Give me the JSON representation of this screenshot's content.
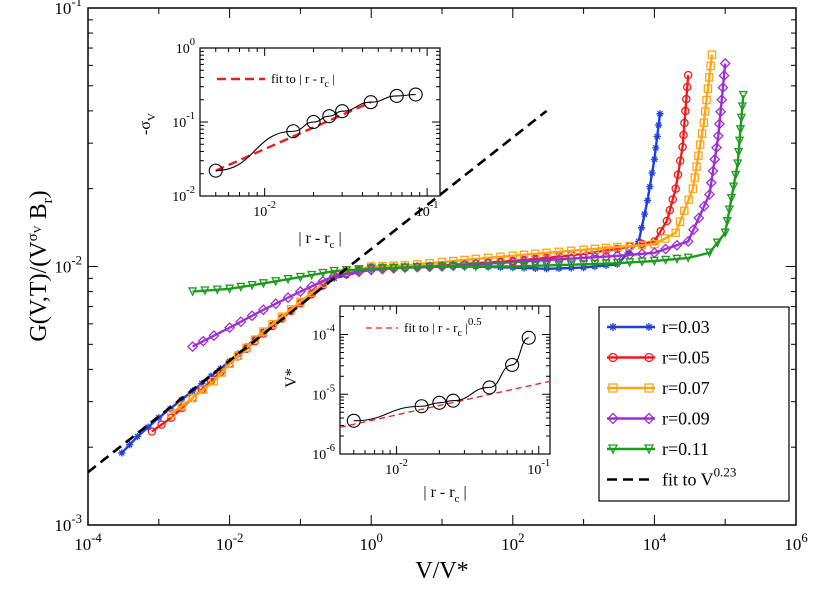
{
  "chart_data": [
    {
      "id": "main",
      "type": "line",
      "xscale": "log",
      "yscale": "log",
      "xlim": [
        0.0001,
        1000000
      ],
      "ylim": [
        0.001,
        0.1
      ],
      "xlabel": "V/V*",
      "ylabel": "G(V,T)/(V^σV B_r)",
      "xticks": [
        {
          "mantissa": "10",
          "exp": "-4"
        },
        {
          "mantissa": "10",
          "exp": "-2"
        },
        {
          "mantissa": "10",
          "exp": "0"
        },
        {
          "mantissa": "10",
          "exp": "2"
        },
        {
          "mantissa": "10",
          "exp": "4"
        },
        {
          "mantissa": "10",
          "exp": "6"
        }
      ],
      "yticks": [
        {
          "mantissa": "10",
          "exp": "-3"
        },
        {
          "mantissa": "10",
          "exp": "-2"
        },
        {
          "mantissa": "10",
          "exp": "-1"
        }
      ],
      "series": [
        {
          "name": "r=0.03",
          "color": "#1f3fe0",
          "marker": "star",
          "x": [
            0.0003,
            0.0005,
            0.001,
            0.003,
            0.01,
            0.03,
            0.1,
            0.3,
            1,
            3,
            10,
            30,
            100,
            300,
            1000,
            3000,
            6000,
            8000,
            10000,
            12000
          ],
          "y": [
            0.0019,
            0.0022,
            0.0026,
            0.0033,
            0.0043,
            0.0056,
            0.0072,
            0.009,
            0.0098,
            0.0099,
            0.01,
            0.01,
            0.0099,
            0.0098,
            0.0099,
            0.0102,
            0.0125,
            0.018,
            0.026,
            0.039
          ]
        },
        {
          "name": "r=0.05",
          "color": "#ee1c1c",
          "marker": "circle",
          "x": [
            0.0008,
            0.0015,
            0.003,
            0.01,
            0.03,
            0.1,
            0.3,
            1,
            3,
            10,
            30,
            100,
            300,
            1000,
            3000,
            10000,
            15000,
            20000,
            25000,
            30000
          ],
          "y": [
            0.0023,
            0.0026,
            0.0031,
            0.0042,
            0.0055,
            0.0072,
            0.0092,
            0.0099,
            0.0099,
            0.0101,
            0.0103,
            0.0105,
            0.0108,
            0.0112,
            0.0117,
            0.0125,
            0.015,
            0.02,
            0.029,
            0.055
          ]
        },
        {
          "name": "r=0.07",
          "color": "#ffa515",
          "marker": "square",
          "x": [
            0.0015,
            0.003,
            0.006,
            0.01,
            0.03,
            0.1,
            0.3,
            1,
            3,
            10,
            30,
            100,
            300,
            1000,
            3000,
            10000,
            20000,
            35000,
            50000,
            65000
          ],
          "y": [
            0.0027,
            0.0031,
            0.0036,
            0.0042,
            0.0056,
            0.0073,
            0.0093,
            0.01,
            0.0101,
            0.0104,
            0.0107,
            0.011,
            0.0113,
            0.0116,
            0.0119,
            0.0122,
            0.0135,
            0.02,
            0.036,
            0.066
          ]
        },
        {
          "name": "r=0.09",
          "color": "#9b2fd0",
          "marker": "diamond",
          "x": [
            0.003,
            0.006,
            0.01,
            0.03,
            0.1,
            0.3,
            1,
            3,
            10,
            30,
            100,
            300,
            1000,
            3000,
            10000,
            30000,
            60000,
            80000,
            100000
          ],
          "y": [
            0.0049,
            0.0054,
            0.0058,
            0.0068,
            0.008,
            0.0092,
            0.0097,
            0.0099,
            0.01,
            0.0102,
            0.0104,
            0.0106,
            0.0108,
            0.011,
            0.0113,
            0.0125,
            0.019,
            0.032,
            0.061
          ]
        },
        {
          "name": "r=0.11",
          "color": "#1f9a1f",
          "marker": "triangle",
          "x": [
            0.003,
            0.01,
            0.03,
            0.1,
            0.3,
            1,
            3,
            10,
            30,
            100,
            300,
            1000,
            3000,
            10000,
            30000,
            60000,
            100000,
            150000,
            180000
          ],
          "y": [
            0.008,
            0.0082,
            0.0086,
            0.0091,
            0.0096,
            0.0098,
            0.0099,
            0.01,
            0.01,
            0.01,
            0.0101,
            0.0102,
            0.0103,
            0.0105,
            0.0108,
            0.0113,
            0.0135,
            0.025,
            0.046
          ]
        },
        {
          "name": "fit to V^0.23",
          "color": "#000000",
          "marker": "none",
          "dashed": true,
          "x": [
            0.0001,
            300
          ],
          "y": [
            0.0016,
            0.04
          ]
        }
      ],
      "legend": {
        "position": "lower-right",
        "entries": [
          {
            "label": "r=0.03"
          },
          {
            "label": "r=0.05"
          },
          {
            "label": "r=0.07"
          },
          {
            "label": "r=0.09"
          },
          {
            "label": "r=0.11"
          },
          {
            "label": "fit to V",
            "sup": "0.23"
          }
        ]
      }
    },
    {
      "id": "inset-sigma",
      "type": "line",
      "xscale": "log",
      "yscale": "log",
      "xlim": [
        0.004,
        0.12
      ],
      "ylim": [
        0.01,
        1
      ],
      "xlabel": "| r - r",
      "xlabel_sub": "c",
      "xlabel_tail": " |",
      "ylabel": "-σ",
      "ylabel_sub": "V",
      "xticks": [
        {
          "mantissa": "10",
          "exp": "-2",
          "value": 0.01
        },
        {
          "mantissa": "10",
          "exp": "-1",
          "value": 0.1
        }
      ],
      "yticks": [
        {
          "label": "10",
          "exp": "-2",
          "value": 0.01
        },
        {
          "label": "10",
          "exp": "-1",
          "value": 0.1
        },
        {
          "label": "10",
          "exp": "0",
          "value": 1
        }
      ],
      "data": {
        "x": [
          0.005,
          0.015,
          0.02,
          0.025,
          0.03,
          0.045,
          0.065,
          0.085
        ],
        "y": [
          0.022,
          0.075,
          0.1,
          0.12,
          0.14,
          0.185,
          0.225,
          0.235
        ]
      },
      "fit": {
        "x": [
          0.005,
          0.045
        ],
        "y": [
          0.022,
          0.185
        ],
        "color": "#ee1c1c"
      },
      "legend": {
        "label": "fit to | r - r",
        "sub": "c",
        "tail": " |"
      }
    },
    {
      "id": "inset-vstar",
      "type": "line",
      "xscale": "log",
      "yscale": "log",
      "xlim": [
        0.004,
        0.12
      ],
      "ylim": [
        1e-06,
        0.0003
      ],
      "xlabel": "| r - r",
      "xlabel_sub": "c",
      "xlabel_tail": " |",
      "ylabel": "V*",
      "xticks": [
        {
          "mantissa": "10",
          "exp": "-2",
          "value": 0.01
        },
        {
          "mantissa": "10",
          "exp": "-1",
          "value": 0.1
        }
      ],
      "yticks": [
        {
          "label": "10",
          "exp": "-6",
          "value": 1e-06
        },
        {
          "label": "10",
          "exp": "-5",
          "value": 1e-05
        },
        {
          "label": "10",
          "exp": "-4",
          "value": 0.0001
        }
      ],
      "data": {
        "x": [
          0.005,
          0.015,
          0.02,
          0.025,
          0.045,
          0.065,
          0.085
        ],
        "y": [
          3.6e-06,
          6.3e-06,
          7.2e-06,
          7.8e-06,
          1.3e-05,
          3.1e-05,
          8.8e-05
        ]
      },
      "fit": {
        "x": [
          0.004,
          0.12
        ],
        "y": [
          2.8e-06,
          1.65e-05
        ],
        "color": "#ee1c1c"
      },
      "legend": {
        "label": "fit to | r - r",
        "sub": "c",
        "tail": " |",
        "sup": "0.5"
      }
    }
  ]
}
